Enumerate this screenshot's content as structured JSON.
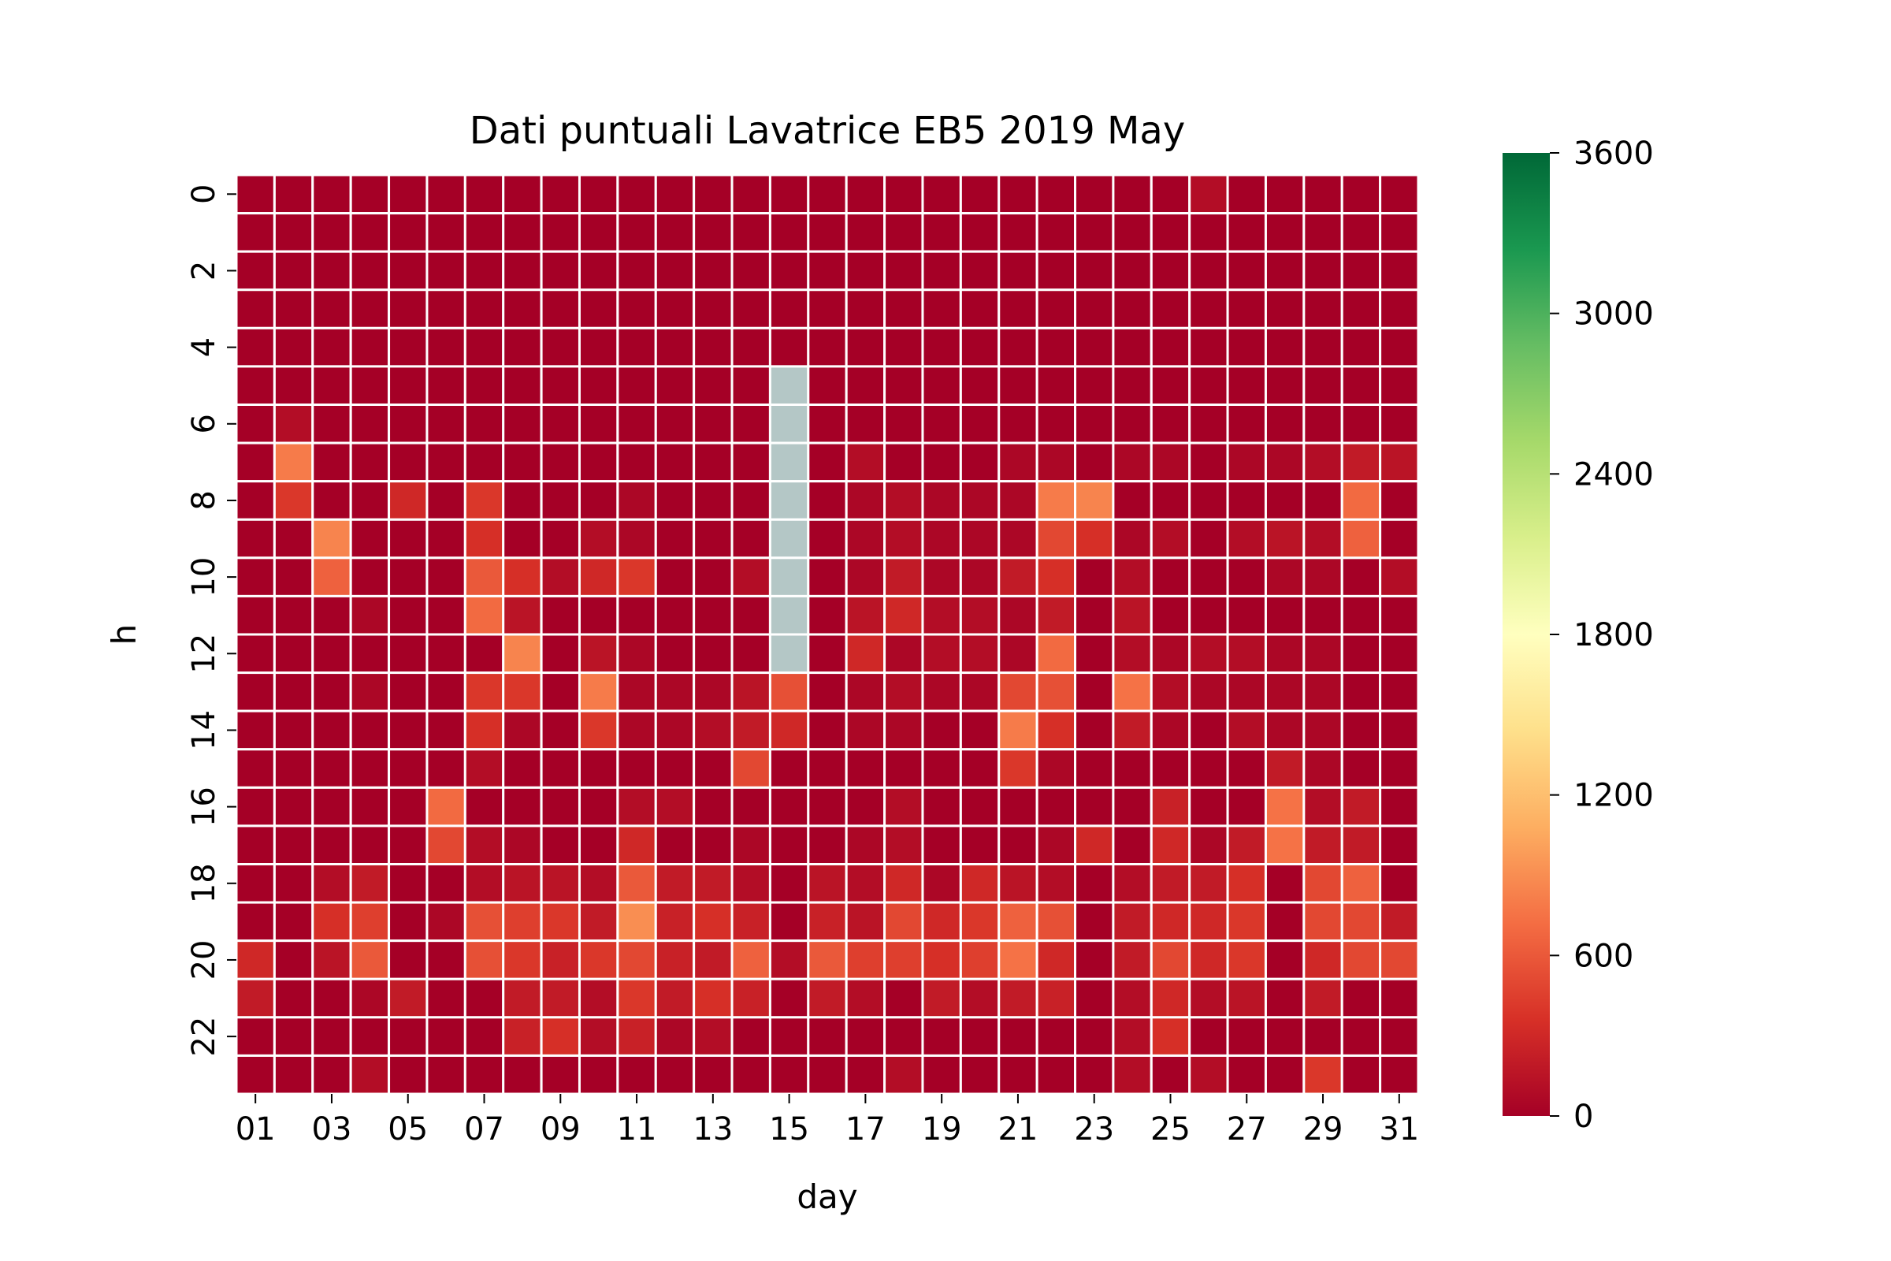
{
  "chart_data": {
    "type": "heatmap",
    "title": "Dati puntuali Lavatrice EB5 2019 May",
    "xlabel": "day",
    "ylabel": "h",
    "x_categories": [
      "01",
      "02",
      "03",
      "04",
      "05",
      "06",
      "07",
      "08",
      "09",
      "10",
      "11",
      "12",
      "13",
      "14",
      "15",
      "16",
      "17",
      "18",
      "19",
      "20",
      "21",
      "22",
      "23",
      "24",
      "25",
      "26",
      "27",
      "28",
      "29",
      "30",
      "31"
    ],
    "x_tick_labels": [
      "01",
      "03",
      "05",
      "07",
      "09",
      "11",
      "13",
      "15",
      "17",
      "19",
      "21",
      "23",
      "25",
      "27",
      "29",
      "31"
    ],
    "y_categories": [
      "0",
      "1",
      "2",
      "3",
      "4",
      "5",
      "6",
      "7",
      "8",
      "9",
      "10",
      "11",
      "12",
      "13",
      "14",
      "15",
      "16",
      "17",
      "18",
      "19",
      "20",
      "21",
      "22",
      "23"
    ],
    "y_tick_labels": [
      "0",
      "2",
      "4",
      "6",
      "8",
      "10",
      "12",
      "14",
      "16",
      "18",
      "20",
      "22"
    ],
    "colorbar": {
      "min": 0,
      "max": 3600,
      "ticks": [
        0,
        600,
        1200,
        1800,
        2400,
        3000,
        3600
      ],
      "colormap": "RdYlGn",
      "colors": [
        "#a50026",
        "#d73027",
        "#f46d43",
        "#fdae61",
        "#fee08b",
        "#ffffbf",
        "#d9ef8b",
        "#a6d96a",
        "#66bd63",
        "#1a9850",
        "#006837"
      ]
    },
    "missing_color": "#b4c7c6",
    "missing_value": null,
    "values": [
      [
        0,
        0,
        0,
        0,
        0,
        0,
        0,
        0,
        0,
        0,
        0,
        0,
        0,
        0,
        0,
        0,
        0,
        0,
        0,
        0,
        0,
        0,
        0,
        0,
        0,
        100,
        0,
        0,
        0,
        0,
        0
      ],
      [
        0,
        0,
        0,
        0,
        0,
        0,
        0,
        0,
        0,
        0,
        0,
        0,
        0,
        0,
        0,
        0,
        0,
        0,
        0,
        0,
        0,
        0,
        0,
        0,
        0,
        0,
        0,
        0,
        0,
        0,
        0
      ],
      [
        0,
        0,
        0,
        0,
        0,
        0,
        0,
        0,
        0,
        0,
        0,
        0,
        0,
        0,
        0,
        0,
        0,
        0,
        0,
        0,
        0,
        0,
        0,
        0,
        0,
        0,
        0,
        0,
        0,
        0,
        0
      ],
      [
        0,
        0,
        0,
        0,
        0,
        0,
        0,
        0,
        0,
        0,
        0,
        0,
        0,
        0,
        0,
        0,
        0,
        0,
        0,
        0,
        0,
        0,
        0,
        0,
        0,
        0,
        0,
        0,
        0,
        0,
        0
      ],
      [
        0,
        0,
        0,
        0,
        0,
        0,
        0,
        0,
        0,
        0,
        0,
        0,
        0,
        0,
        0,
        0,
        0,
        0,
        0,
        0,
        0,
        0,
        0,
        0,
        0,
        0,
        0,
        0,
        0,
        0,
        0
      ],
      [
        0,
        0,
        0,
        0,
        0,
        0,
        0,
        0,
        0,
        0,
        0,
        0,
        0,
        0,
        null,
        0,
        0,
        0,
        0,
        0,
        0,
        0,
        0,
        0,
        0,
        0,
        0,
        0,
        0,
        0,
        0
      ],
      [
        0,
        100,
        0,
        0,
        0,
        0,
        0,
        0,
        0,
        0,
        0,
        0,
        0,
        0,
        null,
        0,
        0,
        0,
        0,
        0,
        0,
        0,
        0,
        0,
        0,
        0,
        0,
        0,
        0,
        0,
        0
      ],
      [
        0,
        800,
        0,
        0,
        0,
        0,
        0,
        0,
        0,
        0,
        0,
        0,
        0,
        0,
        null,
        0,
        100,
        0,
        0,
        0,
        50,
        50,
        0,
        50,
        50,
        0,
        50,
        50,
        100,
        200,
        150
      ],
      [
        0,
        400,
        0,
        0,
        300,
        0,
        400,
        0,
        0,
        0,
        50,
        0,
        0,
        0,
        null,
        0,
        50,
        100,
        50,
        50,
        50,
        800,
        850,
        0,
        0,
        0,
        0,
        0,
        0,
        700,
        0
      ],
      [
        0,
        0,
        850,
        0,
        0,
        0,
        350,
        0,
        0,
        100,
        50,
        0,
        0,
        0,
        null,
        0,
        50,
        100,
        50,
        50,
        50,
        500,
        350,
        50,
        100,
        0,
        100,
        150,
        100,
        650,
        0
      ],
      [
        0,
        0,
        650,
        0,
        0,
        0,
        600,
        350,
        100,
        300,
        400,
        0,
        0,
        100,
        null,
        0,
        50,
        200,
        50,
        50,
        200,
        350,
        0,
        100,
        0,
        0,
        0,
        50,
        50,
        0,
        100
      ],
      [
        0,
        0,
        0,
        50,
        0,
        0,
        700,
        150,
        0,
        0,
        0,
        0,
        0,
        0,
        null,
        0,
        150,
        300,
        100,
        100,
        50,
        200,
        0,
        150,
        0,
        0,
        0,
        0,
        0,
        0,
        0
      ],
      [
        0,
        0,
        0,
        0,
        0,
        0,
        0,
        850,
        0,
        150,
        50,
        0,
        0,
        0,
        null,
        0,
        300,
        50,
        100,
        100,
        50,
        700,
        0,
        100,
        50,
        100,
        100,
        50,
        50,
        0,
        0
      ],
      [
        0,
        0,
        0,
        50,
        0,
        0,
        400,
        400,
        0,
        800,
        50,
        50,
        50,
        150,
        550,
        0,
        50,
        100,
        50,
        50,
        500,
        550,
        0,
        750,
        100,
        50,
        50,
        50,
        50,
        0,
        0
      ],
      [
        0,
        0,
        0,
        0,
        0,
        0,
        350,
        50,
        0,
        400,
        50,
        50,
        100,
        200,
        300,
        0,
        50,
        50,
        0,
        0,
        800,
        350,
        0,
        200,
        50,
        0,
        100,
        50,
        50,
        0,
        0
      ],
      [
        0,
        0,
        0,
        0,
        0,
        0,
        100,
        0,
        0,
        0,
        0,
        0,
        0,
        500,
        0,
        0,
        0,
        0,
        0,
        0,
        400,
        50,
        0,
        0,
        0,
        0,
        0,
        200,
        50,
        0,
        0
      ],
      [
        0,
        0,
        0,
        0,
        0,
        700,
        0,
        0,
        0,
        0,
        100,
        100,
        0,
        0,
        0,
        0,
        0,
        100,
        0,
        0,
        0,
        0,
        0,
        0,
        250,
        0,
        0,
        750,
        100,
        200,
        0
      ],
      [
        0,
        0,
        0,
        0,
        0,
        500,
        100,
        50,
        0,
        0,
        300,
        0,
        0,
        50,
        0,
        0,
        50,
        100,
        0,
        0,
        0,
        50,
        300,
        0,
        300,
        50,
        200,
        750,
        200,
        200,
        0
      ],
      [
        0,
        0,
        100,
        200,
        0,
        0,
        100,
        150,
        150,
        100,
        600,
        200,
        200,
        100,
        0,
        150,
        100,
        300,
        50,
        300,
        150,
        100,
        0,
        100,
        200,
        200,
        350,
        0,
        500,
        650,
        0
      ],
      [
        0,
        0,
        350,
        450,
        0,
        50,
        550,
        450,
        400,
        200,
        900,
        250,
        350,
        250,
        0,
        250,
        150,
        500,
        300,
        400,
        650,
        550,
        0,
        200,
        300,
        300,
        400,
        0,
        500,
        500,
        200
      ],
      [
        300,
        0,
        150,
        600,
        0,
        0,
        550,
        400,
        250,
        400,
        500,
        250,
        200,
        650,
        100,
        600,
        450,
        450,
        350,
        450,
        750,
        300,
        0,
        200,
        500,
        300,
        400,
        0,
        300,
        500,
        500
      ],
      [
        200,
        0,
        0,
        50,
        200,
        0,
        0,
        200,
        200,
        100,
        400,
        200,
        350,
        250,
        0,
        200,
        100,
        0,
        200,
        100,
        200,
        250,
        0,
        100,
        300,
        100,
        150,
        0,
        200,
        0,
        0
      ],
      [
        0,
        0,
        0,
        0,
        0,
        0,
        0,
        250,
        350,
        100,
        250,
        50,
        100,
        0,
        0,
        0,
        0,
        0,
        0,
        0,
        0,
        0,
        0,
        100,
        350,
        0,
        0,
        0,
        0,
        0,
        0
      ],
      [
        0,
        0,
        0,
        100,
        0,
        0,
        0,
        0,
        0,
        0,
        0,
        0,
        0,
        0,
        0,
        0,
        0,
        100,
        0,
        0,
        0,
        0,
        0,
        100,
        0,
        100,
        0,
        0,
        400,
        0,
        0
      ]
    ]
  }
}
